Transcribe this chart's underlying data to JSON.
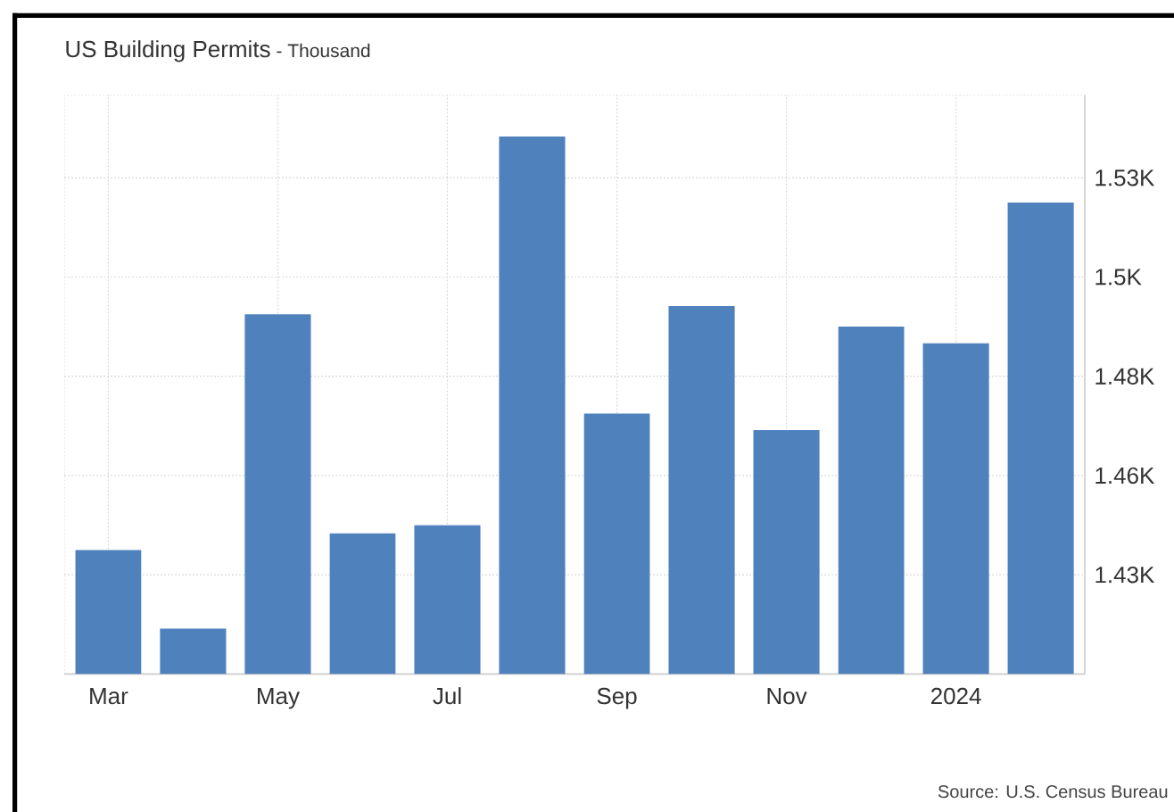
{
  "chart_data": {
    "type": "bar",
    "title": "US Building Permits",
    "subtitle": "- Thousand",
    "categories": [
      "Mar",
      null,
      "May",
      null,
      "Jul",
      null,
      "Sep",
      null,
      "Nov",
      null,
      "2024",
      null
    ],
    "values": [
      1438,
      1419,
      1495,
      1442,
      1444,
      1538,
      1471,
      1497,
      1467,
      1492,
      1488,
      1522
    ],
    "color": "#4f81bd",
    "ylim": [
      1408,
      1548
    ],
    "yticks": [
      {
        "value": 1432,
        "label": "1.43K"
      },
      {
        "value": 1456,
        "label": "1.46K"
      },
      {
        "value": 1480,
        "label": "1.48K"
      },
      {
        "value": 1504,
        "label": "1.5K"
      },
      {
        "value": 1528,
        "label": "1.53K"
      }
    ],
    "grid": true,
    "annotations": [
      "Source: U.S. Census Bureau"
    ]
  }
}
